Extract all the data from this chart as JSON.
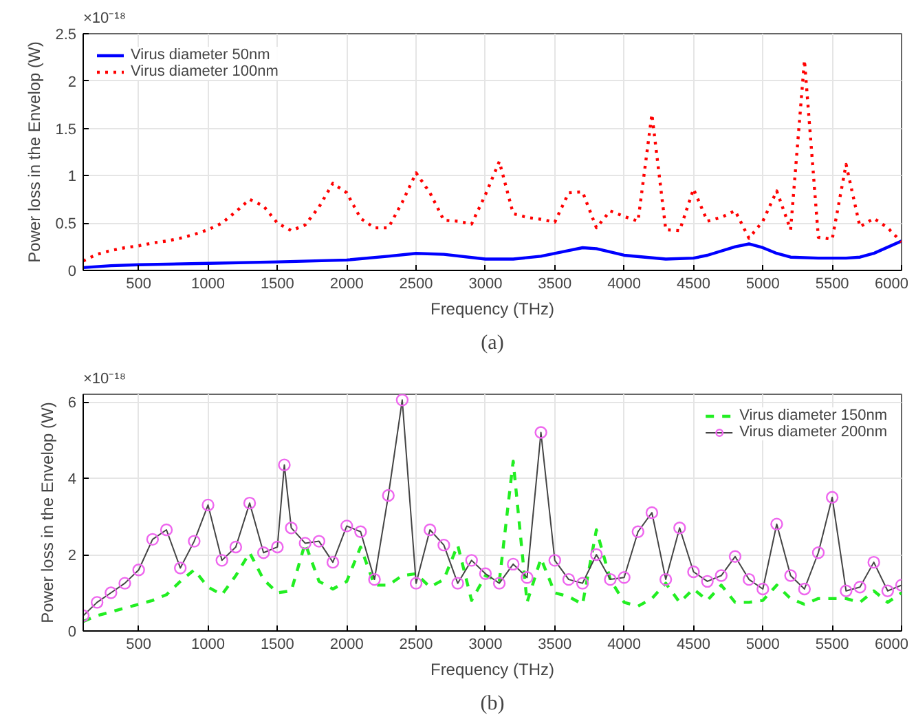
{
  "chart_data": [
    {
      "type": "line",
      "xlabel": "Frequency (THz)",
      "ylabel": "Power loss in the Envelop (W)",
      "annotations": [
        "×10⁻¹⁸",
        "(a)"
      ],
      "xlim": [
        100,
        6000
      ],
      "ylim": [
        0,
        2.5
      ],
      "xticks": [
        500,
        1000,
        1500,
        2000,
        2500,
        3000,
        3500,
        4000,
        4500,
        5000,
        5500,
        6000
      ],
      "yticks": [
        0,
        0.5,
        1,
        1.5,
        2,
        2.5
      ],
      "grid": true,
      "legend": "top left",
      "series": [
        {
          "name": "Virus diameter 50nm",
          "color": "#0000ff",
          "line_style": "solid",
          "x": [
            100,
            300,
            500,
            1000,
            1500,
            2000,
            2300,
            2500,
            2700,
            3000,
            3200,
            3400,
            3600,
            3700,
            3800,
            4000,
            4300,
            4500,
            4600,
            4800,
            4900,
            5000,
            5100,
            5200,
            5400,
            5600,
            5700,
            5800,
            6000
          ],
          "values": [
            0.03,
            0.05,
            0.06,
            0.075,
            0.09,
            0.11,
            0.15,
            0.18,
            0.17,
            0.12,
            0.12,
            0.15,
            0.21,
            0.24,
            0.23,
            0.16,
            0.12,
            0.13,
            0.16,
            0.25,
            0.28,
            0.24,
            0.18,
            0.14,
            0.13,
            0.13,
            0.14,
            0.18,
            0.31
          ]
        },
        {
          "name": "Virus diameter 100nm",
          "color": "#ff0000",
          "line_style": "dotted",
          "x": [
            100,
            200,
            300,
            400,
            500,
            600,
            700,
            800,
            900,
            1000,
            1100,
            1200,
            1300,
            1400,
            1500,
            1600,
            1700,
            1800,
            1900,
            2000,
            2100,
            2200,
            2300,
            2400,
            2500,
            2600,
            2700,
            2800,
            2900,
            3000,
            3100,
            3200,
            3300,
            3400,
            3500,
            3600,
            3700,
            3800,
            3900,
            4000,
            4100,
            4200,
            4300,
            4400,
            4500,
            4600,
            4700,
            4800,
            4900,
            5000,
            5100,
            5200,
            5300,
            5400,
            5500,
            5600,
            5700,
            5800,
            5900,
            6000
          ],
          "values": [
            0.1,
            0.17,
            0.21,
            0.24,
            0.26,
            0.29,
            0.31,
            0.34,
            0.38,
            0.43,
            0.5,
            0.62,
            0.75,
            0.68,
            0.5,
            0.42,
            0.48,
            0.67,
            0.92,
            0.82,
            0.55,
            0.45,
            0.45,
            0.72,
            1.03,
            0.82,
            0.53,
            0.52,
            0.49,
            0.8,
            1.15,
            0.6,
            0.56,
            0.54,
            0.51,
            0.82,
            0.83,
            0.45,
            0.63,
            0.57,
            0.52,
            1.65,
            0.43,
            0.42,
            0.86,
            0.52,
            0.56,
            0.63,
            0.34,
            0.52,
            0.84,
            0.43,
            2.22,
            0.35,
            0.33,
            1.12,
            0.46,
            0.55,
            0.45,
            0.3
          ]
        }
      ]
    },
    {
      "type": "line",
      "xlabel": "Frequency (THz)",
      "ylabel": "Power loss in the Envelop (W)",
      "annotations": [
        "×10⁻¹⁸",
        "(b)"
      ],
      "xlim": [
        100,
        6000
      ],
      "ylim": [
        0,
        6.2
      ],
      "xticks": [
        500,
        1000,
        1500,
        2000,
        2500,
        3000,
        3500,
        4000,
        4500,
        5000,
        5500,
        6000
      ],
      "yticks": [
        0,
        2,
        4,
        6
      ],
      "grid": true,
      "legend": "top right",
      "series": [
        {
          "name": "Virus diameter 150nm",
          "color": "#22ee22",
          "line_style": "dashed",
          "x": [
            100,
            200,
            300,
            400,
            500,
            600,
            700,
            800,
            900,
            1000,
            1100,
            1200,
            1300,
            1400,
            1500,
            1600,
            1700,
            1800,
            1900,
            2000,
            2100,
            2200,
            2300,
            2400,
            2500,
            2600,
            2700,
            2800,
            2900,
            3000,
            3100,
            3200,
            3300,
            3400,
            3500,
            3600,
            3700,
            3800,
            3900,
            4000,
            4100,
            4200,
            4300,
            4400,
            4500,
            4600,
            4700,
            4800,
            4900,
            5000,
            5100,
            5200,
            5300,
            5400,
            5500,
            5600,
            5700,
            5800,
            5900,
            6000
          ],
          "values": [
            0.25,
            0.4,
            0.5,
            0.6,
            0.7,
            0.8,
            0.95,
            1.3,
            1.6,
            1.15,
            0.95,
            1.45,
            2.05,
            1.35,
            1.0,
            1.05,
            2.3,
            1.3,
            1.1,
            1.3,
            2.2,
            1.2,
            1.2,
            1.45,
            1.5,
            1.15,
            1.35,
            2.25,
            0.8,
            1.45,
            1.3,
            4.45,
            0.75,
            1.9,
            1.0,
            0.9,
            0.7,
            2.65,
            1.35,
            0.75,
            0.65,
            0.85,
            1.25,
            0.75,
            1.1,
            0.8,
            1.2,
            0.75,
            0.75,
            0.8,
            1.2,
            0.85,
            0.7,
            0.85,
            0.85,
            0.85,
            0.75,
            1.05,
            0.75,
            1.0
          ]
        },
        {
          "name": "Virus diameter 200nm",
          "color": "#ee66ee",
          "line_style": "solid",
          "marker": "circle",
          "x": [
            100,
            200,
            300,
            400,
            500,
            600,
            700,
            800,
            900,
            1000,
            1100,
            1200,
            1300,
            1400,
            1500,
            1550,
            1600,
            1700,
            1800,
            1900,
            2000,
            2100,
            2200,
            2300,
            2400,
            2500,
            2600,
            2700,
            2800,
            2900,
            3000,
            3100,
            3200,
            3300,
            3400,
            3500,
            3600,
            3700,
            3800,
            3900,
            4000,
            4100,
            4200,
            4300,
            4400,
            4500,
            4600,
            4700,
            4800,
            4900,
            5000,
            5100,
            5200,
            5300,
            5400,
            5500,
            5600,
            5700,
            5800,
            5900,
            6000
          ],
          "values": [
            0.4,
            0.75,
            1.0,
            1.25,
            1.6,
            2.4,
            2.65,
            1.65,
            2.35,
            3.3,
            1.85,
            2.2,
            3.35,
            2.05,
            2.2,
            4.35,
            2.7,
            2.3,
            2.35,
            1.8,
            2.75,
            2.6,
            1.35,
            3.55,
            6.05,
            1.25,
            2.65,
            2.25,
            1.25,
            1.85,
            1.5,
            1.25,
            1.75,
            1.4,
            5.2,
            1.85,
            1.35,
            1.25,
            2.0,
            1.35,
            1.4,
            2.6,
            3.1,
            1.35,
            2.7,
            1.55,
            1.3,
            1.45,
            1.95,
            1.35,
            1.1,
            2.8,
            1.45,
            1.1,
            2.05,
            3.5,
            1.05,
            1.15,
            1.8,
            1.05,
            1.2
          ]
        }
      ]
    }
  ]
}
